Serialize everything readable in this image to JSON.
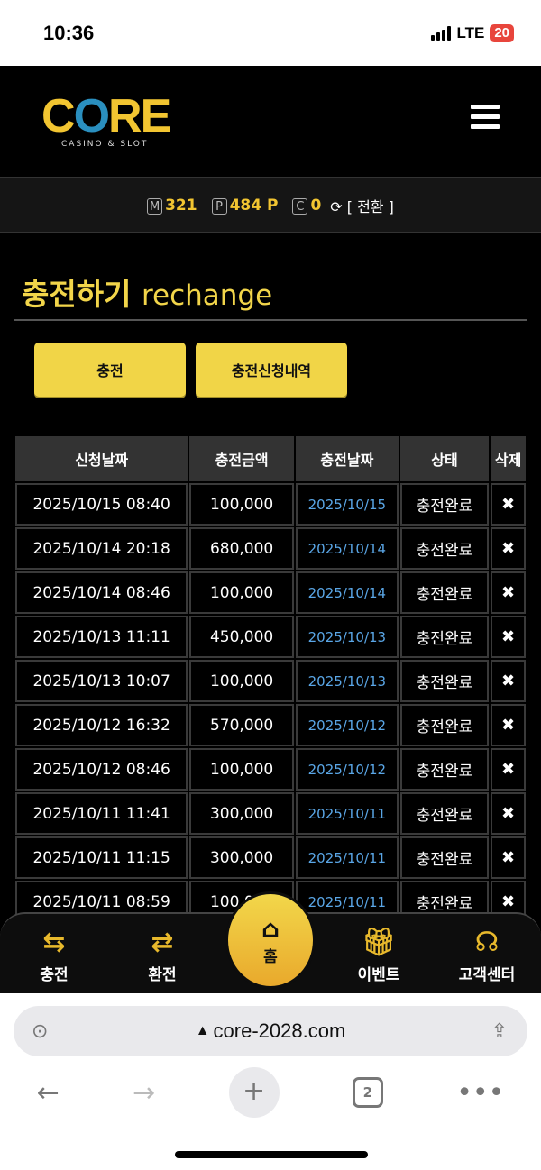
{
  "status_bar": {
    "time": "10:36",
    "network": "LTE",
    "battery": "20"
  },
  "header": {
    "logo_text": "CORE",
    "logo_sub": "CASINO & SLOT"
  },
  "balance": {
    "m_label": "M",
    "m_value": "321",
    "p_label": "P",
    "p_value": "484 P",
    "c_label": "C",
    "c_value": "0",
    "swap_label": "[ 전환 ]"
  },
  "page": {
    "title_ko": "충전하기",
    "title_en": "rechange"
  },
  "buttons": {
    "charge": "충전",
    "history": "충전신청내역"
  },
  "table": {
    "headers": [
      "신청날짜",
      "충전금액",
      "충전날짜",
      "상태",
      "삭제"
    ],
    "rows": [
      [
        "2025/10/15 08:40",
        "100,000",
        "2025/10/15",
        "충전완료"
      ],
      [
        "2025/10/14 20:18",
        "680,000",
        "2025/10/14",
        "충전완료"
      ],
      [
        "2025/10/14 08:46",
        "100,000",
        "2025/10/14",
        "충전완료"
      ],
      [
        "2025/10/13 11:11",
        "450,000",
        "2025/10/13",
        "충전완료"
      ],
      [
        "2025/10/13 10:07",
        "100,000",
        "2025/10/13",
        "충전완료"
      ],
      [
        "2025/10/12 16:32",
        "570,000",
        "2025/10/12",
        "충전완료"
      ],
      [
        "2025/10/12 08:46",
        "100,000",
        "2025/10/12",
        "충전완료"
      ],
      [
        "2025/10/11 11:41",
        "300,000",
        "2025/10/11",
        "충전완료"
      ],
      [
        "2025/10/11 11:15",
        "300,000",
        "2025/10/11",
        "충전완료"
      ],
      [
        "2025/10/11 08:59",
        "100,000",
        "2025/10/11",
        "충전완료"
      ]
    ],
    "delete_icon": "✖"
  },
  "bottom_nav": {
    "charge": "충전",
    "exchange": "환전",
    "home": "홈",
    "event": "이벤트",
    "support": "고객센터"
  },
  "browser": {
    "url": "core-2028.com",
    "tab_count": "2"
  },
  "colors": {
    "accent": "#f1d547",
    "link": "#5aa6e6"
  }
}
